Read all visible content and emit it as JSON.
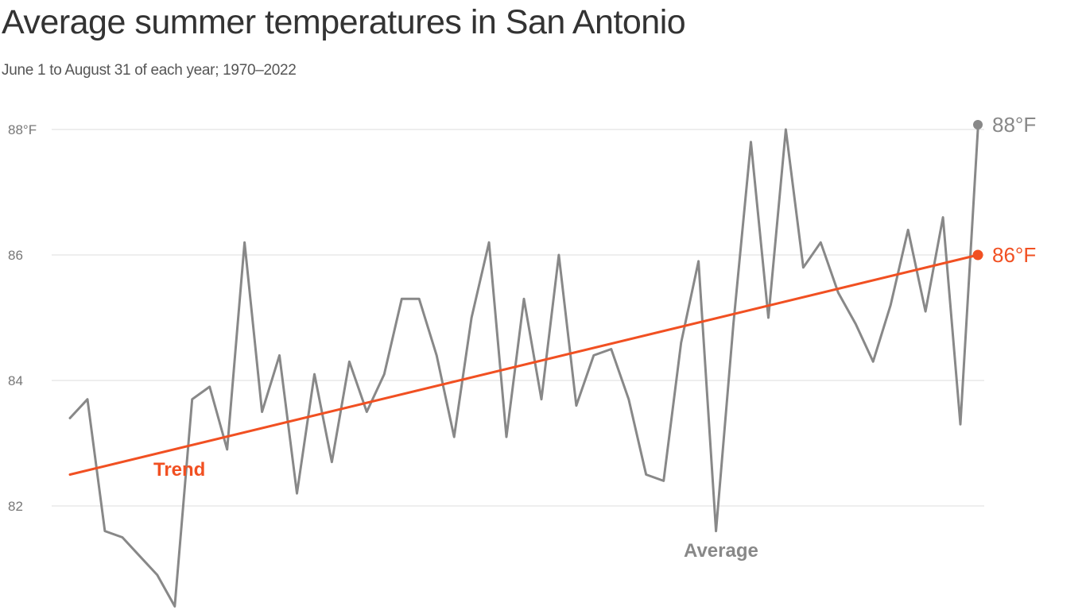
{
  "title": "Average summer temperatures in San Antonio",
  "subtitle": "June 1 to August 31 of each year; 1970–2022",
  "chart_data": {
    "type": "line",
    "title": "Average summer temperatures in San Antonio",
    "subtitle": "June 1 to August 31 of each year; 1970–2022",
    "xlabel": "",
    "ylabel": "",
    "x_range": [
      1970,
      2022
    ],
    "ylim": [
      80.5,
      88.2
    ],
    "y_ticks": [
      {
        "value": 88,
        "label": "88°F"
      },
      {
        "value": 86,
        "label": "86"
      },
      {
        "value": 84,
        "label": "84"
      },
      {
        "value": 82,
        "label": "82"
      }
    ],
    "grid": true,
    "series": [
      {
        "name": "Average",
        "color": "#888888",
        "x": [
          1970,
          1971,
          1972,
          1973,
          1974,
          1975,
          1976,
          1977,
          1978,
          1979,
          1980,
          1981,
          1982,
          1983,
          1984,
          1985,
          1986,
          1987,
          1988,
          1989,
          1990,
          1991,
          1992,
          1993,
          1994,
          1995,
          1996,
          1997,
          1998,
          1999,
          2000,
          2001,
          2002,
          2003,
          2004,
          2005,
          2006,
          2007,
          2008,
          2009,
          2010,
          2011,
          2012,
          2013,
          2014,
          2015,
          2016,
          2017,
          2018,
          2019,
          2020,
          2021,
          2022
        ],
        "values": [
          83.4,
          83.7,
          81.6,
          81.5,
          81.2,
          80.9,
          80.4,
          83.7,
          83.9,
          82.9,
          86.2,
          83.5,
          84.4,
          82.2,
          84.1,
          82.7,
          84.3,
          83.5,
          84.1,
          85.3,
          85.3,
          84.4,
          83.1,
          85.0,
          86.2,
          83.1,
          85.3,
          83.7,
          86.0,
          83.6,
          84.4,
          84.5,
          83.7,
          82.5,
          82.4,
          84.6,
          85.9,
          81.6,
          84.9,
          87.8,
          85.0,
          88.0,
          85.8,
          86.2,
          85.4,
          84.9,
          84.3,
          85.2,
          86.4,
          85.1,
          86.6,
          83.3,
          88.0
        ],
        "end_label": "88°F"
      },
      {
        "name": "Trend",
        "color": "#f15022",
        "x": [
          1970,
          2022
        ],
        "values": [
          82.5,
          86.0
        ],
        "end_label": "86°F"
      }
    ]
  }
}
